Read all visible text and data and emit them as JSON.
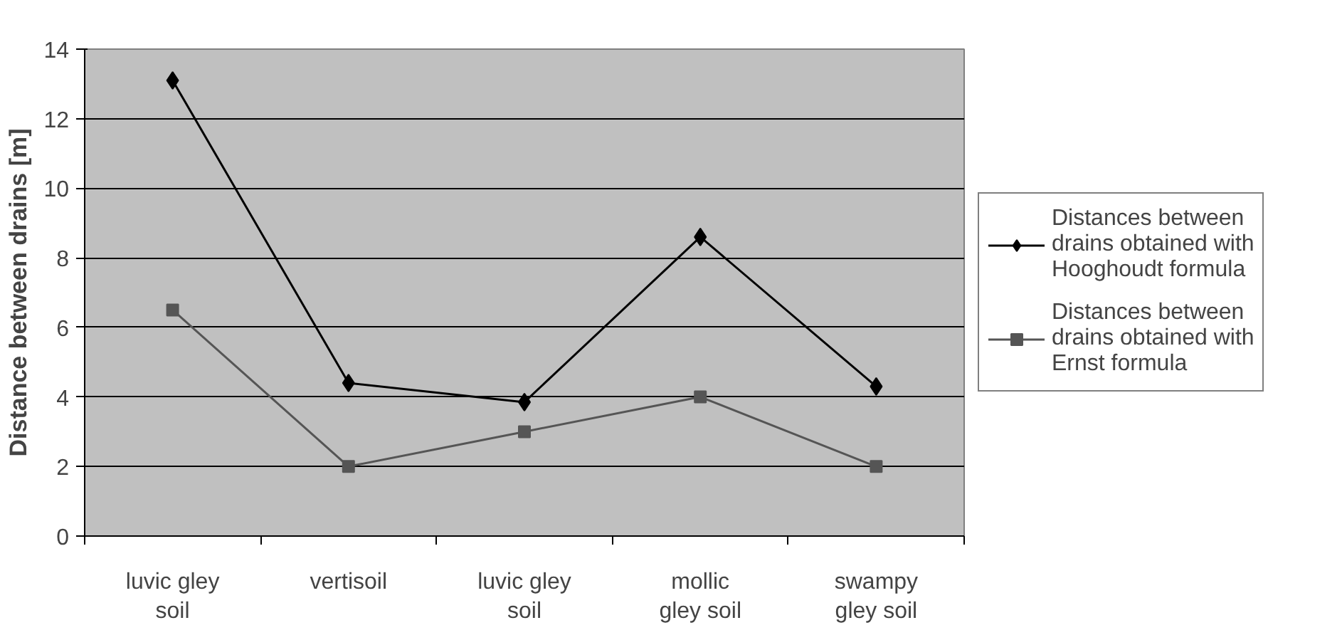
{
  "chart_data": {
    "type": "line",
    "ylabel": "Distance between drains [m]",
    "categories": [
      "luvic gley soil",
      "vertisoil",
      "luvic gley soil",
      "mollic gley soil",
      "swampy gley soil"
    ],
    "series": [
      {
        "name": "Distances between drains obtained with Hooghoudt formula",
        "color": "#000000",
        "marker": "diamond",
        "values": [
          13.1,
          4.4,
          3.85,
          8.6,
          4.3
        ]
      },
      {
        "name": "Distances between drains obtained with Ernst formula",
        "color": "#555555",
        "marker": "square",
        "values": [
          6.5,
          2.0,
          3.0,
          4.0,
          2.0
        ]
      }
    ],
    "ylim": [
      0,
      14
    ],
    "yticks": [
      0,
      2,
      4,
      6,
      8,
      10,
      12,
      14
    ],
    "grid": "y",
    "legend": "right",
    "line_style": "solid"
  }
}
